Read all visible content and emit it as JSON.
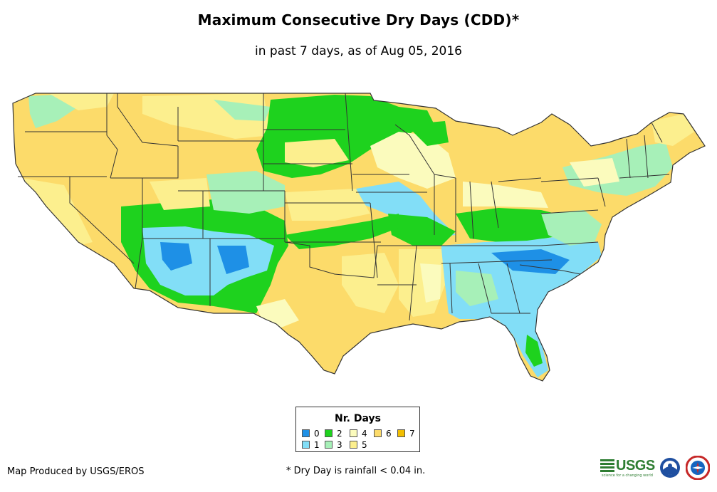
{
  "header": {
    "title": "Maximum Consecutive Dry Days (CDD)*",
    "subtitle": "in past 7 days, as of Aug 05, 2016"
  },
  "map": {
    "region": "Contiguous United States",
    "colors": {
      "d0": "#1e90e6",
      "d1": "#82def7",
      "d2": "#1ed21e",
      "d3": "#a7f0b8",
      "d4": "#fbfbbd",
      "d5": "#fcef8e",
      "d6": "#fcdb6a",
      "d7": "#f2be00",
      "border": "#333333"
    }
  },
  "legend": {
    "title": "Nr. Days",
    "items": [
      {
        "label": "0",
        "color": "#1e90e6"
      },
      {
        "label": "1",
        "color": "#82def7"
      },
      {
        "label": "2",
        "color": "#1ed21e"
      },
      {
        "label": "3",
        "color": "#a7f0b8"
      },
      {
        "label": "4",
        "color": "#fbfbbd"
      },
      {
        "label": "5",
        "color": "#fcef8e"
      },
      {
        "label": "6",
        "color": "#fcdb6a"
      },
      {
        "label": "7",
        "color": "#f2be00"
      }
    ]
  },
  "footer": {
    "credit": "Map Produced by USGS/EROS",
    "note": "* Dry Day is rainfall < 0.04 in.",
    "logos": {
      "usgs_text": "USGS",
      "usgs_tagline": "science for a changing world"
    }
  }
}
